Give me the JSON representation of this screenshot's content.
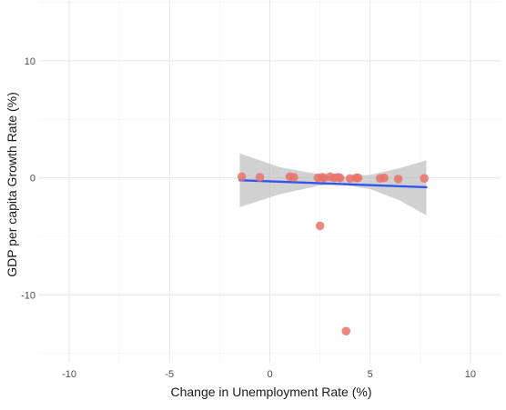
{
  "chart_data": {
    "type": "scatter",
    "title": "",
    "xlabel": "Change in Unemployment Rate (%)",
    "ylabel": "GDP per capita Growth Rate (%)",
    "xlim": [
      -11.5,
      11.5
    ],
    "ylim": [
      -15.8,
      15.2
    ],
    "x_ticks": [
      -10,
      -5,
      0,
      5,
      10
    ],
    "y_ticks": [
      -10,
      0,
      10
    ],
    "x_tick_labels": [
      "-10",
      "-5",
      "0",
      "5",
      "10"
    ],
    "y_tick_labels": [
      "-10",
      "0",
      "10"
    ],
    "grid": true,
    "legend": "none",
    "point_color": "#e8736c",
    "fit_line_color": "#3355ee",
    "ci_band_color": "#bdbdbd",
    "points": [
      {
        "x": -1.4,
        "y": 0.1
      },
      {
        "x": -0.5,
        "y": 0.05
      },
      {
        "x": 1.0,
        "y": 0.1
      },
      {
        "x": 1.2,
        "y": 0.05
      },
      {
        "x": 2.4,
        "y": 0.0
      },
      {
        "x": 2.6,
        "y": 0.05
      },
      {
        "x": 2.7,
        "y": 0.0
      },
      {
        "x": 3.0,
        "y": 0.1
      },
      {
        "x": 3.2,
        "y": 0.0
      },
      {
        "x": 3.4,
        "y": 0.05
      },
      {
        "x": 3.5,
        "y": 0.0
      },
      {
        "x": 4.0,
        "y": -0.05
      },
      {
        "x": 4.3,
        "y": 0.0
      },
      {
        "x": 4.4,
        "y": 0.0
      },
      {
        "x": 5.5,
        "y": -0.05
      },
      {
        "x": 5.7,
        "y": 0.0
      },
      {
        "x": 6.4,
        "y": -0.1
      },
      {
        "x": 7.7,
        "y": -0.05
      },
      {
        "x": 2.5,
        "y": -4.1
      },
      {
        "x": 3.8,
        "y": -13.1
      }
    ],
    "fit_line": [
      {
        "x": -1.5,
        "y": -0.2
      },
      {
        "x": 7.8,
        "y": -0.8
      }
    ],
    "ci_band": {
      "x": [
        -1.5,
        0.5,
        2.5,
        3.5,
        5.0,
        6.5,
        7.8
      ],
      "upper": [
        2.1,
        0.9,
        0.3,
        0.1,
        0.25,
        0.85,
        1.5
      ],
      "lower": [
        -2.5,
        -1.4,
        -0.65,
        -0.55,
        -0.95,
        -1.95,
        -3.2
      ]
    }
  }
}
